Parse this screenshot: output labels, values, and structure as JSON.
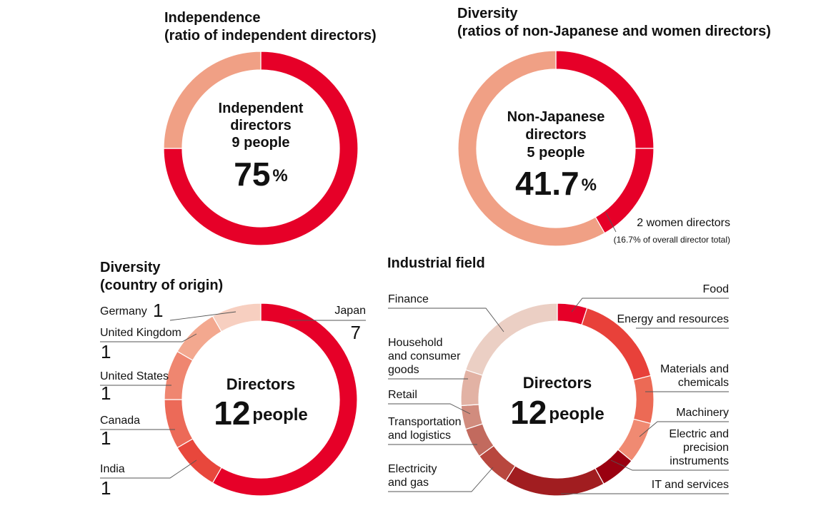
{
  "chart_data": [
    {
      "type": "pie",
      "title": "Independence",
      "subtitle": "(ratio of independent directors)",
      "center_label": "Independent\ndirectors\n9 people",
      "center_value": 75,
      "center_unit": "%",
      "values": [
        75,
        25
      ],
      "colors": [
        "#e60028",
        "#f0a085"
      ]
    },
    {
      "type": "pie",
      "title": "Diversity",
      "subtitle": "(ratios of non-Japanese and women directors)",
      "center_label": "Non-Japanese\ndirectors\n5 people",
      "center_value": 41.7,
      "center_unit": "%",
      "values": [
        25,
        16.7,
        58.3
      ],
      "colors": [
        "#e60028",
        "#e60028",
        "#f0a085"
      ],
      "annotations": [
        "2 women directors",
        "(16.7% of overall director total)"
      ]
    },
    {
      "type": "pie",
      "title": "Diversity",
      "subtitle": "(country of origin)",
      "center_label": "Directors",
      "center_value": 12,
      "center_unit": "people",
      "categories": [
        "Japan",
        "India",
        "Canada",
        "United States",
        "United Kingdom",
        "Germany"
      ],
      "values": [
        7,
        1,
        1,
        1,
        1,
        1
      ],
      "colors": [
        "#e60028",
        "#e8473c",
        "#ec6a58",
        "#ef8670",
        "#f3a88f",
        "#f7cfc0"
      ]
    },
    {
      "type": "pie",
      "title": "Industrial field",
      "center_label": "Directors",
      "center_value": 12,
      "center_unit": "people",
      "categories": [
        "Food",
        "Energy and resources",
        "Materials and\nchemicals",
        "Machinery",
        "Electric and\nprecision\ninstruments",
        "IT and services",
        "Electricity\nand gas",
        "Transportation\nand logistics",
        "Retail",
        "Household\nand consumer\ngoods",
        "Finance"
      ],
      "values": [
        5,
        16,
        8,
        7,
        6,
        17,
        6,
        5,
        4,
        6,
        20
      ],
      "colors": [
        "#e60028",
        "#e8413a",
        "#ec6a55",
        "#f08a72",
        "#9a0010",
        "#a11d20",
        "#b8473e",
        "#c26a5e",
        "#d18c7e",
        "#e2b2a4",
        "#ebcfc4"
      ]
    }
  ]
}
